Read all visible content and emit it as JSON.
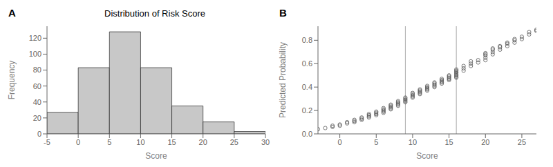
{
  "chart_data": [
    {
      "type": "histogram",
      "title": "Distribution of Risk Score",
      "x_label": "Score",
      "y_label": "Frequency",
      "bins": [
        -5,
        0,
        5,
        10,
        15,
        20,
        25,
        30
      ],
      "values": [
        27,
        83,
        128,
        83,
        35,
        15,
        3
      ],
      "color": "#c8c8c8",
      "xlim": [
        -5,
        30
      ],
      "xticks": [
        -5,
        0,
        5,
        10,
        15,
        20,
        25,
        30
      ],
      "ylim": [
        0,
        135
      ],
      "yticks": [
        0,
        20,
        40,
        60,
        80,
        100,
        120
      ],
      "grid": false,
      "annotations": [
        {
          "text": "A"
        }
      ]
    },
    {
      "type": "scatter",
      "x_label": "Score",
      "y_label": "Predicted Probability",
      "x": [
        -3,
        -2,
        -1,
        -1,
        0,
        0,
        1,
        1,
        2,
        2,
        2,
        3,
        3,
        3,
        4,
        4,
        4,
        4,
        5,
        5,
        5,
        5,
        6,
        6,
        6,
        6,
        6,
        7,
        7,
        7,
        7,
        7,
        8,
        8,
        8,
        8,
        8,
        9,
        9,
        9,
        9,
        9,
        10,
        10,
        10,
        10,
        10,
        11,
        11,
        11,
        11,
        11,
        12,
        12,
        12,
        12,
        12,
        13,
        13,
        13,
        13,
        13,
        14,
        14,
        14,
        14,
        14,
        15,
        15,
        15,
        15,
        15,
        16,
        16,
        16,
        16,
        16,
        16,
        16,
        16,
        17,
        17,
        17,
        18,
        18,
        18,
        19,
        19,
        20,
        20,
        20,
        20,
        20,
        21,
        21,
        21,
        21,
        22,
        22,
        22,
        23,
        23,
        23,
        24,
        24,
        24,
        25,
        25,
        26,
        26,
        27,
        27
      ],
      "values": [
        0.04,
        0.05,
        0.06,
        0.07,
        0.07,
        0.08,
        0.09,
        0.1,
        0.1,
        0.11,
        0.12,
        0.12,
        0.13,
        0.14,
        0.14,
        0.15,
        0.16,
        0.17,
        0.16,
        0.17,
        0.18,
        0.19,
        0.18,
        0.19,
        0.2,
        0.21,
        0.22,
        0.21,
        0.22,
        0.23,
        0.24,
        0.25,
        0.24,
        0.25,
        0.26,
        0.27,
        0.28,
        0.27,
        0.28,
        0.29,
        0.3,
        0.31,
        0.31,
        0.32,
        0.33,
        0.34,
        0.35,
        0.34,
        0.35,
        0.36,
        0.37,
        0.38,
        0.37,
        0.38,
        0.39,
        0.4,
        0.41,
        0.4,
        0.41,
        0.42,
        0.43,
        0.44,
        0.43,
        0.44,
        0.45,
        0.46,
        0.47,
        0.46,
        0.47,
        0.48,
        0.49,
        0.5,
        0.48,
        0.49,
        0.5,
        0.51,
        0.52,
        0.53,
        0.54,
        0.55,
        0.54,
        0.56,
        0.58,
        0.58,
        0.6,
        0.62,
        0.61,
        0.63,
        0.63,
        0.65,
        0.67,
        0.68,
        0.69,
        0.68,
        0.7,
        0.72,
        0.73,
        0.72,
        0.74,
        0.75,
        0.75,
        0.77,
        0.78,
        0.78,
        0.8,
        0.81,
        0.81,
        0.83,
        0.85,
        0.87,
        0.88,
        0.89
      ],
      "color": "#555555",
      "marker": "circle",
      "xlim": [
        -3,
        27
      ],
      "xticks": [
        0,
        5,
        10,
        15,
        20,
        25
      ],
      "ylim": [
        0.0,
        0.92
      ],
      "yticks": [
        {
          "value": 0.0,
          "label": "0.0"
        },
        0.2,
        0.4,
        0.6,
        0.8
      ],
      "grid": false,
      "annotations": [
        {
          "text": "B"
        },
        {
          "type": "vline",
          "x": 9,
          "color": "#aaaaaa"
        },
        {
          "type": "vline",
          "x": 16,
          "color": "#aaaaaa"
        }
      ]
    }
  ]
}
